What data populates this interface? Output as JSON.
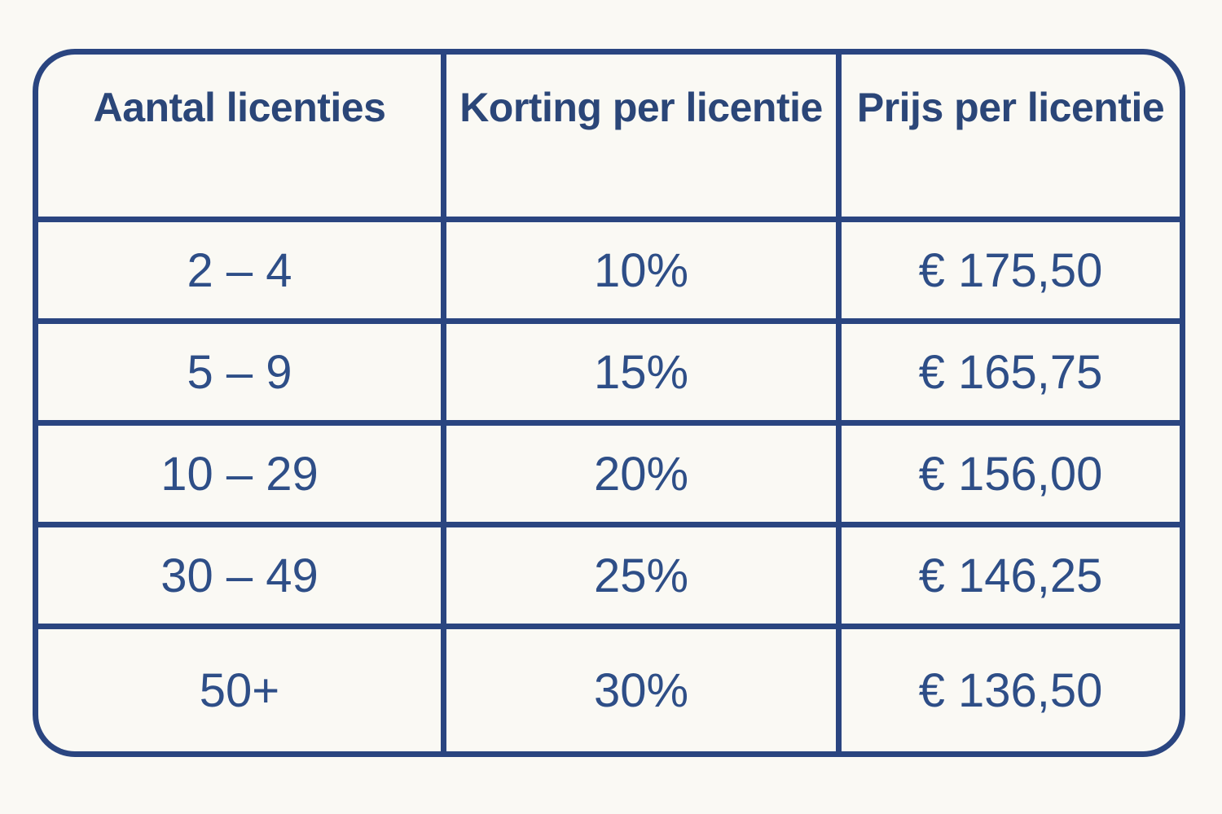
{
  "colors": {
    "background": "#FAF9F4",
    "grid_and_border": "#2A4580",
    "header_text": "#2B4678",
    "cell_text": "#2E4E87"
  },
  "chart_data": {
    "type": "table",
    "columns": [
      "Aantal licenties",
      "Korting per licentie",
      "Prijs per licentie"
    ],
    "rows": [
      [
        "2 – 4",
        "10%",
        "€ 175,50"
      ],
      [
        "5 – 9",
        "15%",
        "€ 165,75"
      ],
      [
        "10 – 29",
        "20%",
        "€ 156,00"
      ],
      [
        "30 – 49",
        "25%",
        "€ 146,25"
      ],
      [
        "50+",
        "30%",
        "€ 136,50"
      ]
    ],
    "layout": {
      "grid": "on",
      "rounded_outer_border": true,
      "header_row": true
    }
  }
}
